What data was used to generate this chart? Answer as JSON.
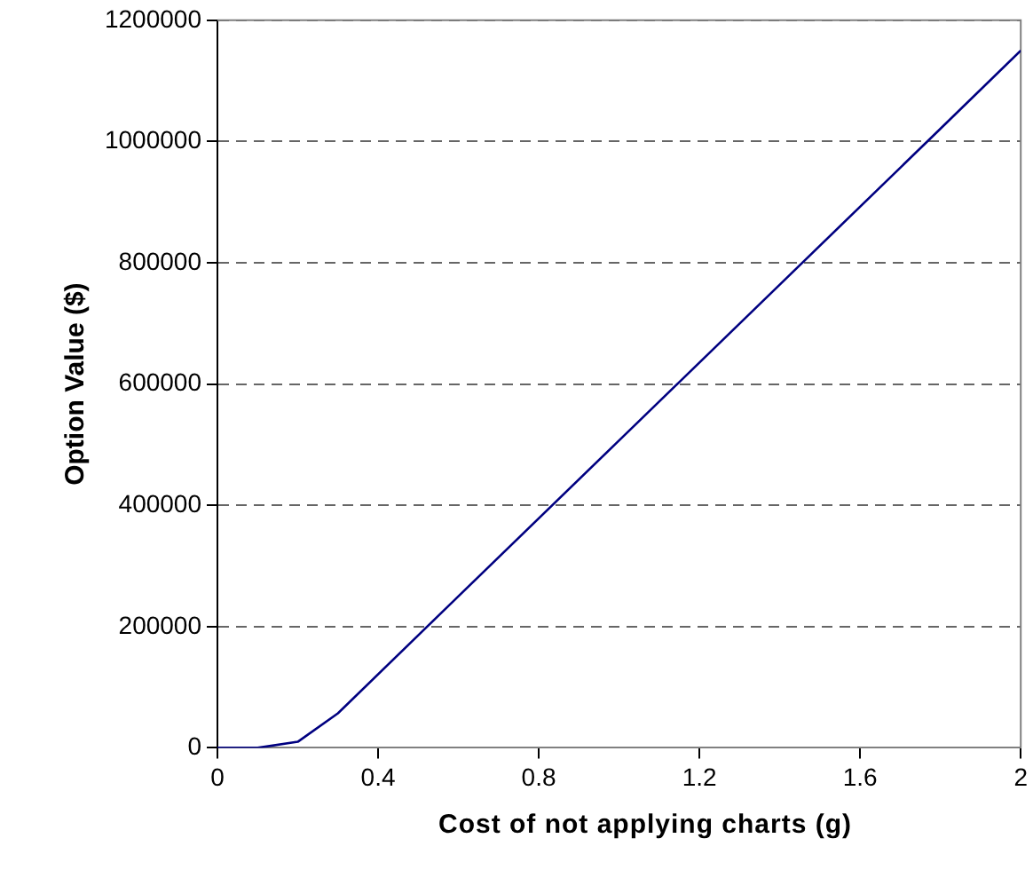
{
  "chart_data": {
    "type": "line",
    "xlabel": "Cost of not applying charts (g)",
    "ylabel": "Option Value ($)",
    "x": [
      0,
      0.1,
      0.2,
      0.3,
      0.6,
      1.0,
      1.4,
      1.8,
      2.0
    ],
    "series": [
      {
        "color": "#000080",
        "values": [
          0,
          0,
          10000,
          57000,
          250000,
          507000,
          764000,
          1021000,
          1150000
        ]
      }
    ],
    "xlim": [
      0,
      2
    ],
    "xticks": [
      0,
      0.4,
      0.8,
      1.2,
      1.6,
      2
    ],
    "ylim": [
      0,
      1200000
    ],
    "yticks": [
      0,
      200000,
      400000,
      600000,
      800000,
      1000000,
      1200000
    ],
    "grid": "y",
    "line_style": "solid",
    "marker": "none",
    "legend": false
  }
}
